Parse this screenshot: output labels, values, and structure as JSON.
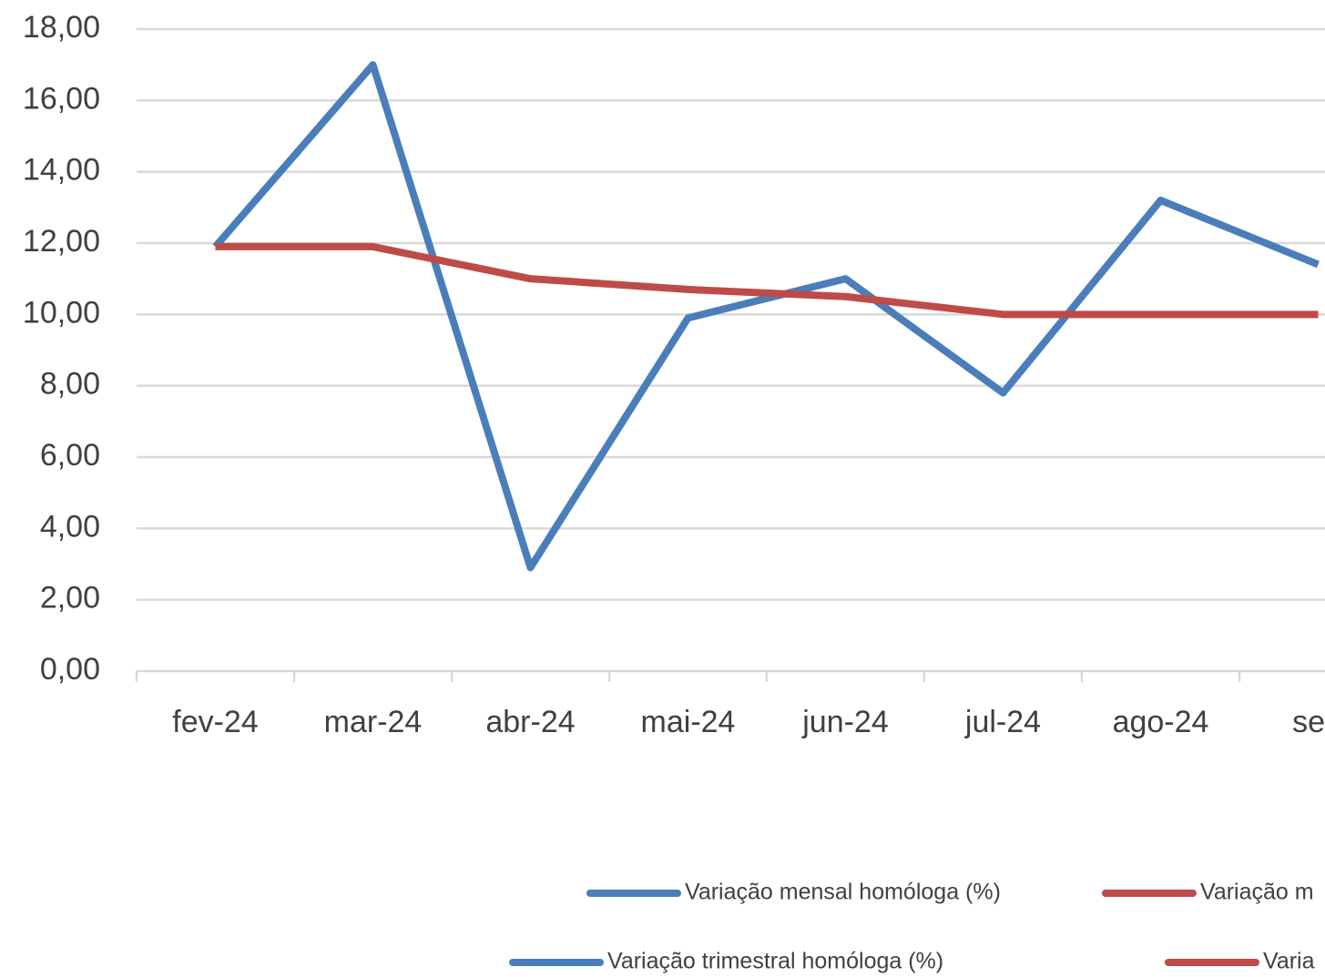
{
  "chart_data": {
    "type": "line",
    "categories": [
      "fev-24",
      "mar-24",
      "abr-24",
      "mai-24",
      "jun-24",
      "jul-24",
      "ago-24",
      "set-"
    ],
    "series": [
      {
        "color": "#4a7ebb",
        "values": [
          11.9,
          17.0,
          2.9,
          9.9,
          11.0,
          7.8,
          13.2,
          11.4
        ]
      },
      {
        "color": "#be4b48",
        "values": [
          11.9,
          11.9,
          11.0,
          10.7,
          10.5,
          10.0,
          10.0,
          10.0
        ]
      }
    ],
    "legend": [
      {
        "name": "Variação mensal homóloga (%)",
        "color": "#4a7ebb"
      },
      {
        "name": "Variação m",
        "color": "#be4b48"
      },
      {
        "name": "Variação trimestral homóloga (%)",
        "color": "#4a7ebb"
      },
      {
        "name": "Varia",
        "color": "#be4b48"
      }
    ],
    "ylim": [
      0,
      18
    ],
    "yticks": [
      {
        "value": 0,
        "label": "0,00"
      },
      {
        "value": 2,
        "label": "2,00"
      },
      {
        "value": 4,
        "label": "4,00"
      },
      {
        "value": 6,
        "label": "6,00"
      },
      {
        "value": 8,
        "label": "8,00"
      },
      {
        "value": 10,
        "label": "10,00"
      },
      {
        "value": 12,
        "label": "12,00"
      },
      {
        "value": 14,
        "label": "14,00"
      },
      {
        "value": 16,
        "label": "16,00"
      },
      {
        "value": 18,
        "label": "18,00"
      }
    ],
    "grid": true
  }
}
